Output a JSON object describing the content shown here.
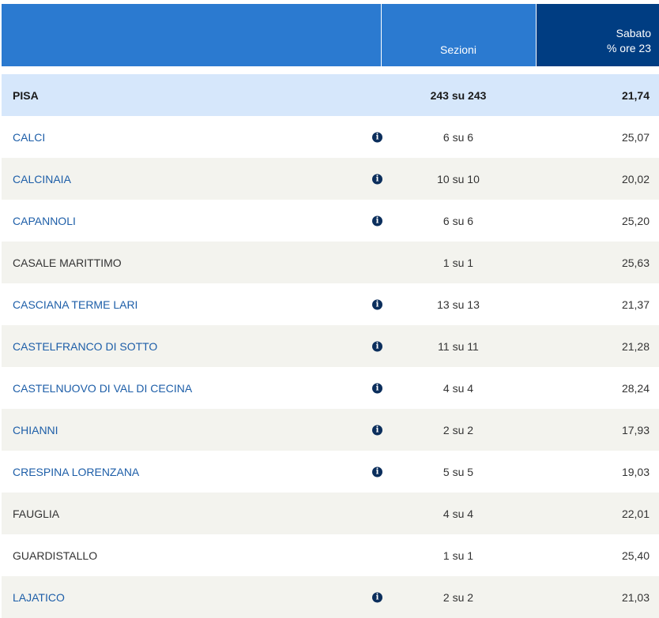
{
  "header": {
    "sezioni_label": "Sezioni",
    "day_label": "Sabato",
    "time_label": "% ore 23"
  },
  "total": {
    "name": "PISA",
    "sezioni": "243 su 243",
    "value": "21,74"
  },
  "rows": [
    {
      "name": "CALCI",
      "link": true,
      "info": true,
      "sezioni": "6 su 6",
      "value": "25,07"
    },
    {
      "name": "CALCINAIA",
      "link": true,
      "info": true,
      "sezioni": "10 su 10",
      "value": "20,02"
    },
    {
      "name": "CAPANNOLI",
      "link": true,
      "info": true,
      "sezioni": "6 su 6",
      "value": "25,20"
    },
    {
      "name": "CASALE MARITTIMO",
      "link": false,
      "info": false,
      "sezioni": "1 su 1",
      "value": "25,63"
    },
    {
      "name": "CASCIANA TERME LARI",
      "link": true,
      "info": true,
      "sezioni": "13 su 13",
      "value": "21,37"
    },
    {
      "name": "CASTELFRANCO DI SOTTO",
      "link": true,
      "info": true,
      "sezioni": "11 su 11",
      "value": "21,28"
    },
    {
      "name": "CASTELNUOVO DI VAL DI CECINA",
      "link": true,
      "info": true,
      "sezioni": "4 su 4",
      "value": "28,24"
    },
    {
      "name": "CHIANNI",
      "link": true,
      "info": true,
      "sezioni": "2 su 2",
      "value": "17,93"
    },
    {
      "name": "CRESPINA LORENZANA",
      "link": true,
      "info": true,
      "sezioni": "5 su 5",
      "value": "19,03"
    },
    {
      "name": "FAUGLIA",
      "link": false,
      "info": false,
      "sezioni": "4 su 4",
      "value": "22,01"
    },
    {
      "name": "GUARDISTALLO",
      "link": false,
      "info": false,
      "sezioni": "1 su 1",
      "value": "25,40"
    },
    {
      "name": "LAJATICO",
      "link": true,
      "info": true,
      "sezioni": "2 su 2",
      "value": "21,03"
    }
  ],
  "icons": {
    "info": "info-circle-icon"
  },
  "colors": {
    "header_blue": "#2b7ad0",
    "header_dark": "#003d82",
    "total_row": "#d6e7fb",
    "alt_row": "#f3f3ee",
    "link": "#1d5ea8"
  }
}
